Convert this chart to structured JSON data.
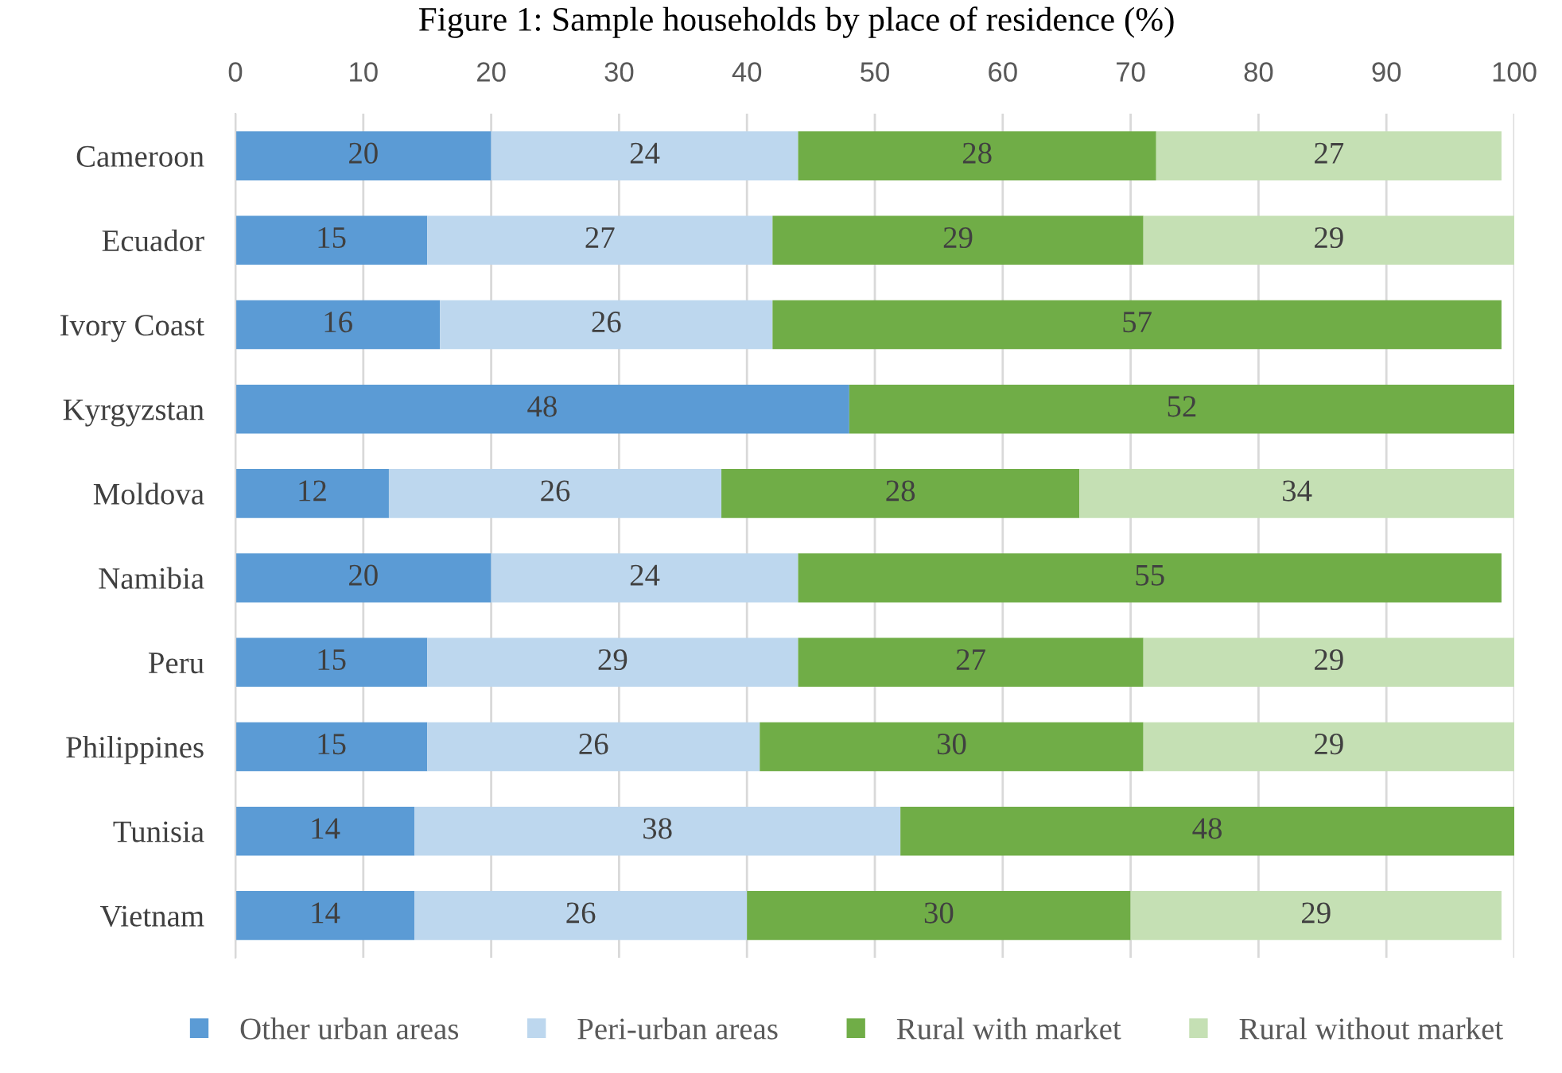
{
  "chart_data": {
    "type": "bar",
    "title": "Figure 1: Sample households by place of residence (%)",
    "orientation": "horizontal",
    "stacked": true,
    "categories": [
      "Cameroon",
      "Ecuador",
      "Ivory Coast",
      "Kyrgyzstan",
      "Moldova",
      "Namibia",
      "Peru",
      "Philippines",
      "Tunisia",
      "Vietnam"
    ],
    "series": [
      {
        "name": "Other urban areas",
        "color": "#5b9bd5",
        "values": [
          20,
          15,
          16,
          48,
          12,
          20,
          15,
          15,
          14,
          14
        ]
      },
      {
        "name": "Peri-urban areas",
        "color": "#bdd7ee",
        "values": [
          24,
          27,
          26,
          null,
          26,
          24,
          29,
          26,
          38,
          26
        ]
      },
      {
        "name": "Rural with market",
        "color": "#70ad47",
        "values": [
          28,
          29,
          57,
          52,
          28,
          55,
          27,
          30,
          48,
          30
        ]
      },
      {
        "name": "Rural without market",
        "color": "#c5e0b4",
        "values": [
          27,
          29,
          null,
          null,
          34,
          null,
          29,
          29,
          null,
          29
        ]
      }
    ],
    "xlim": [
      0,
      100
    ],
    "xticks": [
      0,
      10,
      20,
      30,
      40,
      50,
      60,
      70,
      80,
      90,
      100
    ],
    "grid": "x",
    "legend": "bottom",
    "data_labels": true
  }
}
